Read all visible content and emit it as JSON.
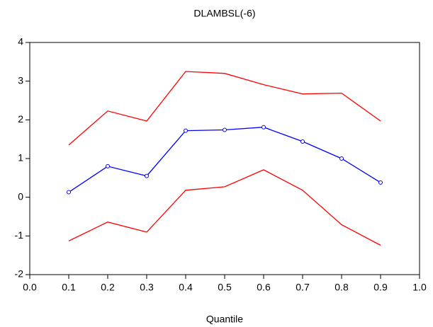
{
  "chart_data": {
    "type": "line",
    "title": "DLAMBSL(-6)",
    "x_label": "Quantile",
    "x": [
      0.1,
      0.2,
      0.3,
      0.4,
      0.5,
      0.6,
      0.7,
      0.8,
      0.9
    ],
    "series": [
      {
        "color": "#ff0000",
        "values": [
          1.35,
          2.23,
          1.97,
          3.25,
          3.2,
          2.91,
          2.67,
          2.69,
          1.97
        ]
      },
      {
        "color": "#0000ff",
        "marker": true,
        "values": [
          0.13,
          0.8,
          0.55,
          1.72,
          1.74,
          1.81,
          1.44,
          1.0,
          0.38
        ]
      },
      {
        "color": "#ff0000",
        "values": [
          -1.13,
          -0.64,
          -0.9,
          0.18,
          0.27,
          0.71,
          0.18,
          -0.71,
          -1.24
        ]
      }
    ],
    "xlim": [
      0,
      1
    ],
    "xticks": [
      {
        "value": 0,
        "label": "0.0"
      },
      0.1,
      0.2,
      0.3,
      0.4,
      0.5,
      0.6,
      0.7,
      0.8,
      0.9,
      {
        "value": 1,
        "label": "1.0"
      }
    ],
    "ylim": [
      -2,
      4
    ],
    "yticks": [
      -2,
      -1,
      0,
      1,
      2,
      3,
      4
    ],
    "grid": false
  }
}
